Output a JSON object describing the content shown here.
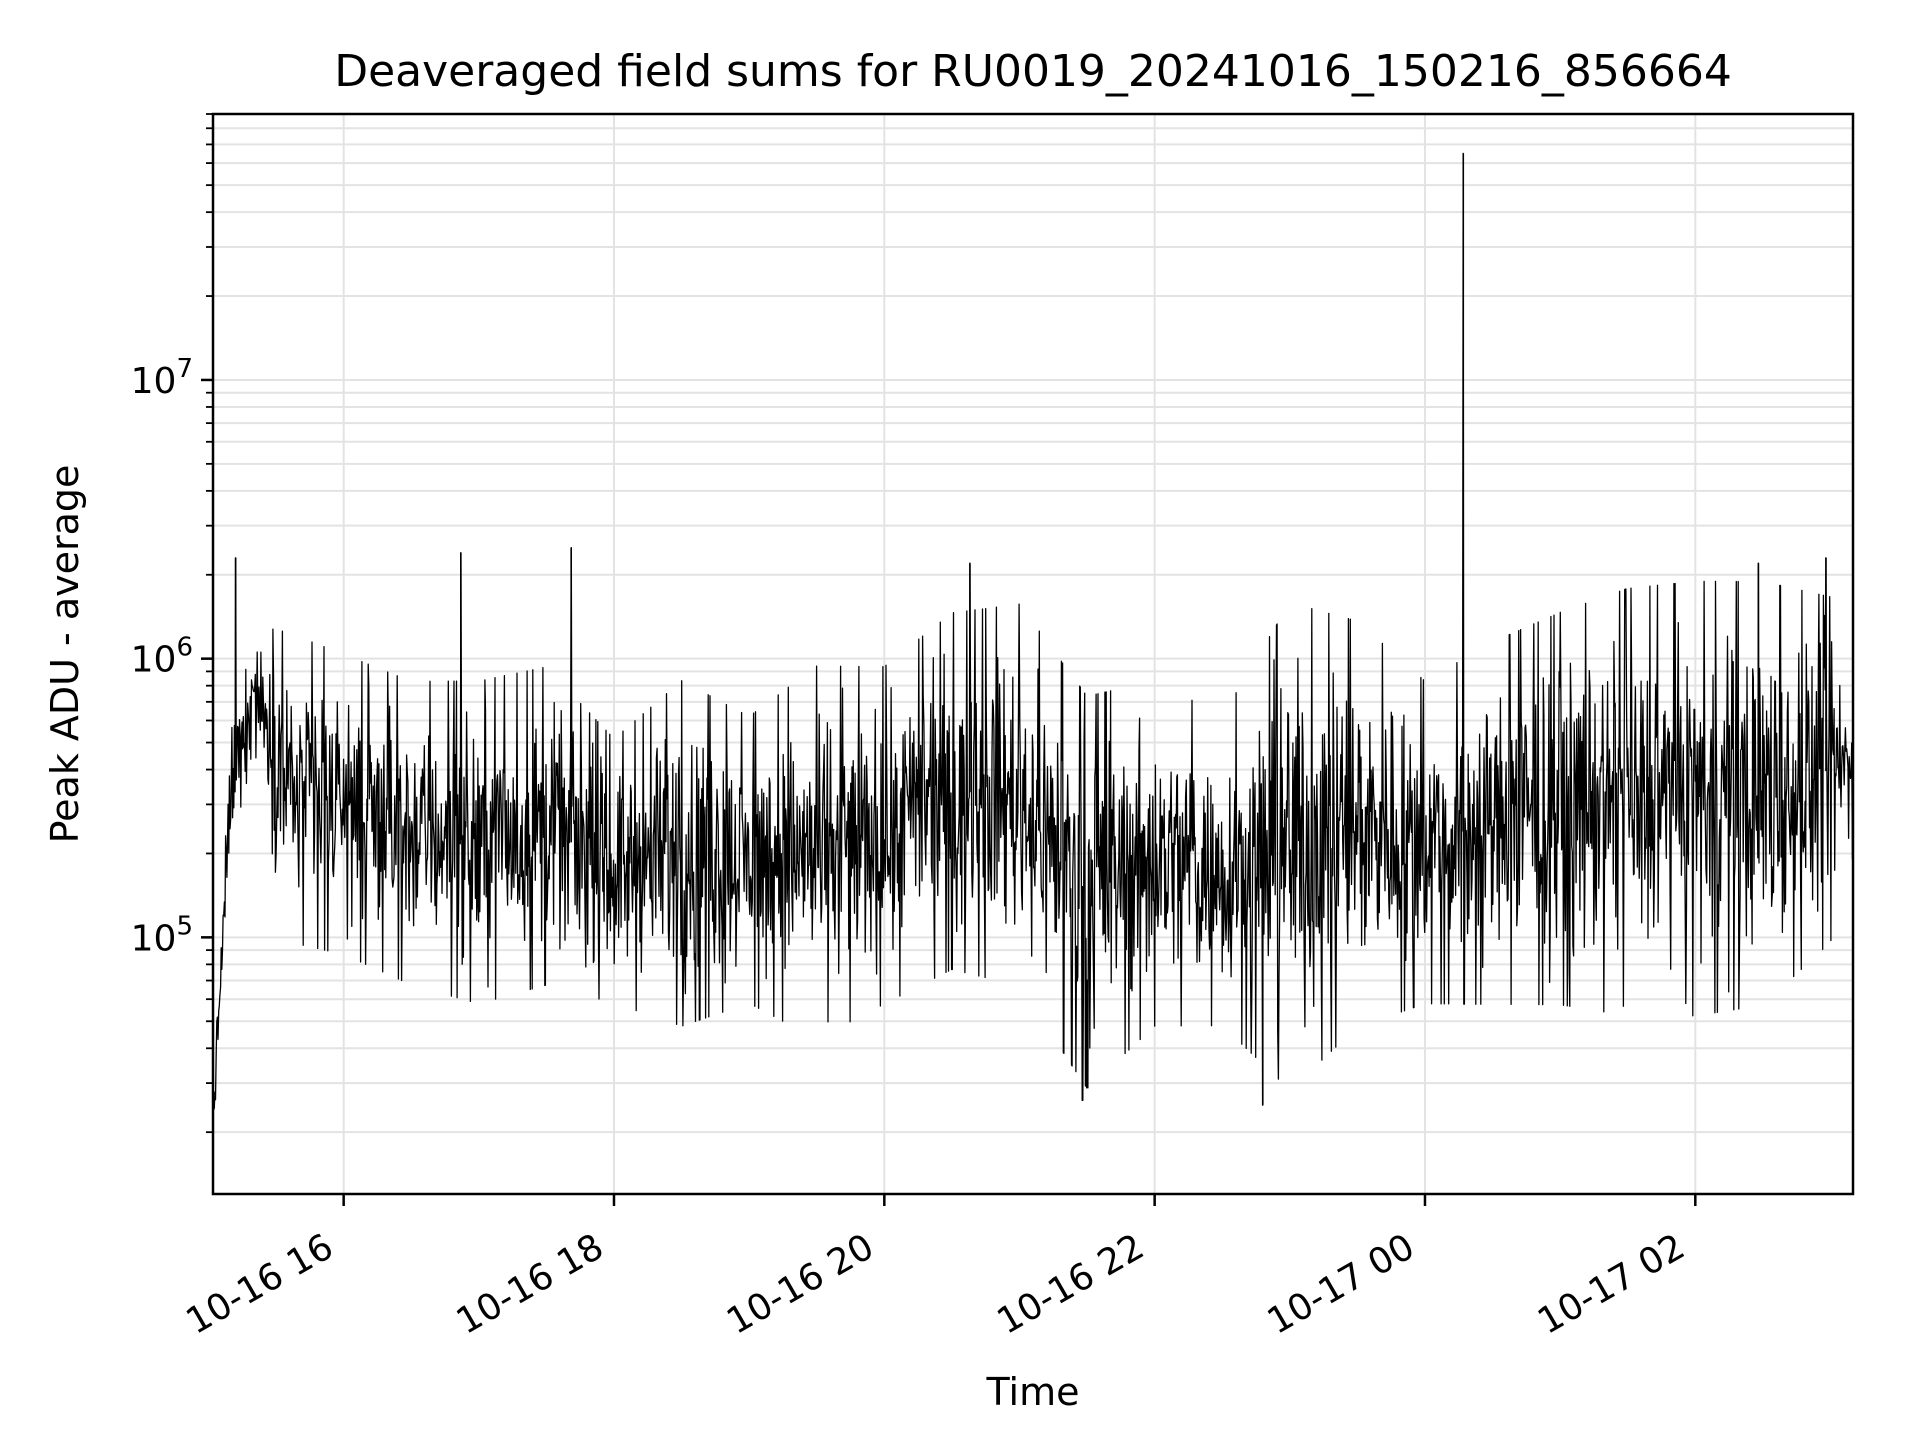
{
  "chart_data": {
    "type": "line",
    "title": "Deaveraged field sums for RU0019_20241016_150216_856664",
    "xlabel": "Time",
    "ylabel": "Peak ADU - average",
    "x_axis_kind": "datetime",
    "xlim": [
      "2024-10-16 15:02",
      "2024-10-17 03:10"
    ],
    "x_ticks": [
      {
        "value": "2024-10-16 16:00",
        "label": "10-16 16"
      },
      {
        "value": "2024-10-16 18:00",
        "label": "10-16 18"
      },
      {
        "value": "2024-10-16 20:00",
        "label": "10-16 20"
      },
      {
        "value": "2024-10-16 22:00",
        "label": "10-16 22"
      },
      {
        "value": "2024-10-17 00:00",
        "label": "10-17 00"
      },
      {
        "value": "2024-10-17 02:00",
        "label": "10-17 02"
      }
    ],
    "y_scale": "log",
    "ylim": [
      12000,
      90000000
    ],
    "y_ticks": [
      {
        "value": 100000,
        "base": "10",
        "exp": "5"
      },
      {
        "value": 1000000,
        "base": "10",
        "exp": "6"
      },
      {
        "value": 10000000,
        "base": "10",
        "exp": "7"
      }
    ],
    "grid": true,
    "line_color": "#000000",
    "series": [
      {
        "name": "",
        "envelope": [
          {
            "x": "2024-10-16 15:02",
            "low": 16000,
            "high": 30000
          },
          {
            "x": "2024-10-16 15:10",
            "low": 180000,
            "high": 700000
          },
          {
            "x": "2024-10-16 15:20",
            "low": 500000,
            "high": 1300000
          },
          {
            "x": "2024-10-16 15:35",
            "low": 100000,
            "high": 1200000
          },
          {
            "x": "2024-10-16 16:00",
            "low": 90000,
            "high": 1000000
          },
          {
            "x": "2024-10-16 16:30",
            "low": 70000,
            "high": 800000
          },
          {
            "x": "2024-10-16 17:00",
            "low": 60000,
            "high": 800000
          },
          {
            "x": "2024-10-16 17:30",
            "low": 70000,
            "high": 900000
          },
          {
            "x": "2024-10-16 18:00",
            "low": 60000,
            "high": 500000
          },
          {
            "x": "2024-10-16 18:30",
            "low": 50000,
            "high": 800000
          },
          {
            "x": "2024-10-16 19:00",
            "low": 60000,
            "high": 600000
          },
          {
            "x": "2024-10-16 19:30",
            "low": 45000,
            "high": 900000
          },
          {
            "x": "2024-10-16 20:00",
            "low": 60000,
            "high": 900000
          },
          {
            "x": "2024-10-16 20:30",
            "low": 80000,
            "high": 1400000
          },
          {
            "x": "2024-10-16 21:00",
            "low": 70000,
            "high": 1500000
          },
          {
            "x": "2024-10-16 21:30",
            "low": 30000,
            "high": 700000
          },
          {
            "x": "2024-10-16 22:00",
            "low": 50000,
            "high": 800000
          },
          {
            "x": "2024-10-16 22:30",
            "low": 50000,
            "high": 600000
          },
          {
            "x": "2024-10-16 23:00",
            "low": 30000,
            "high": 1500000
          },
          {
            "x": "2024-10-16 23:30",
            "low": 50000,
            "high": 1300000
          },
          {
            "x": "2024-10-17 00:00",
            "low": 60000,
            "high": 800000
          },
          {
            "x": "2024-10-17 00:30",
            "low": 60000,
            "high": 1100000
          },
          {
            "x": "2024-10-17 01:00",
            "low": 60000,
            "high": 1400000
          },
          {
            "x": "2024-10-17 01:30",
            "low": 55000,
            "high": 1700000
          },
          {
            "x": "2024-10-17 02:00",
            "low": 55000,
            "high": 1800000
          },
          {
            "x": "2024-10-17 02:30",
            "low": 60000,
            "high": 1800000
          },
          {
            "x": "2024-10-17 03:00",
            "low": 100000,
            "high": 1600000
          },
          {
            "x": "2024-10-17 03:10",
            "low": 200000,
            "high": 900000
          }
        ],
        "spikes": [
          {
            "x": "2024-10-16 15:12",
            "y": 2300000
          },
          {
            "x": "2024-10-16 16:52",
            "y": 2400000
          },
          {
            "x": "2024-10-16 17:41",
            "y": 2500000
          },
          {
            "x": "2024-10-16 20:38",
            "y": 2200000
          },
          {
            "x": "2024-10-16 21:28",
            "y": 26000
          },
          {
            "x": "2024-10-16 22:48",
            "y": 25000
          },
          {
            "x": "2024-10-17 00:17",
            "y": 65000000
          },
          {
            "x": "2024-10-17 02:28",
            "y": 2200000
          },
          {
            "x": "2024-10-17 02:58",
            "y": 2300000
          }
        ]
      }
    ]
  }
}
